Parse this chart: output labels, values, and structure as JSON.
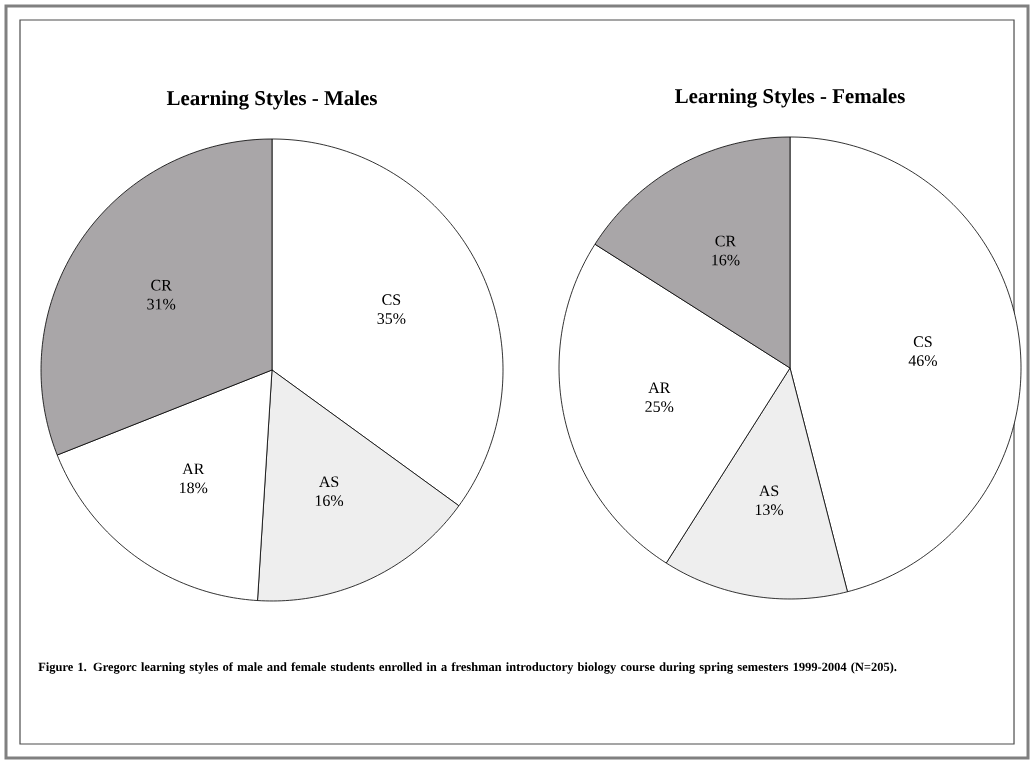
{
  "chart_data": [
    {
      "type": "pie",
      "title": "Learning Styles - Males",
      "categories": [
        "CS",
        "AS",
        "AR",
        "CR"
      ],
      "values": [
        35,
        16,
        18,
        31
      ],
      "value_labels": [
        "35%",
        "16%",
        "18%",
        "31%"
      ],
      "colors": [
        "#ffffff",
        "#eeeeee",
        "#ffffff",
        "#a9a6a8"
      ],
      "annotations": [
        "Figure 1. Gregorc learning styles of male and female students enrolled in a freshman introductory biology course during spring semesters 1999-2004 (N=205)."
      ]
    },
    {
      "type": "pie",
      "title": "Learning Styles - Females",
      "categories": [
        "CS",
        "AS",
        "AR",
        "CR"
      ],
      "values": [
        46,
        13,
        25,
        16
      ],
      "value_labels": [
        "46%",
        "13%",
        "25%",
        "16%"
      ],
      "colors": [
        "#ffffff",
        "#eeeeee",
        "#ffffff",
        "#a9a6a8"
      ]
    }
  ]
}
